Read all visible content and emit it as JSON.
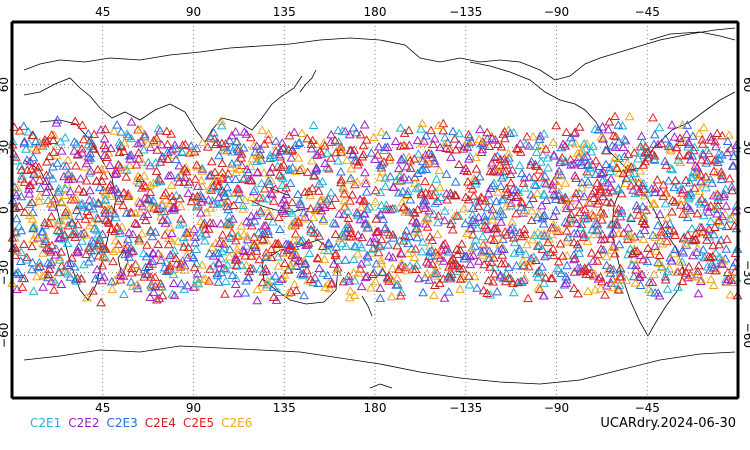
{
  "map": {
    "top_lon_ticks": [
      "45",
      "90",
      "135",
      "180",
      "−135",
      "−90",
      "−45"
    ],
    "bottom_lon_ticks": [
      "45",
      "90",
      "135",
      "180",
      "−135",
      "−90",
      "−45"
    ],
    "lat_ticks": [
      "60",
      "30",
      "0",
      "−30",
      "−60"
    ],
    "lat_values": [
      60,
      30,
      0,
      -30,
      -60
    ],
    "lon_values": [
      45,
      90,
      135,
      180,
      225,
      270,
      315
    ],
    "lon_range": [
      0,
      360
    ],
    "lat_range": [
      -90,
      90
    ],
    "grid": "dotted",
    "marker": "open-triangle",
    "occultation_band_lat": [
      -45,
      45
    ]
  },
  "legend": {
    "items": [
      {
        "label": "C2E1",
        "color": "#1fb4d6"
      },
      {
        "label": "C2E2",
        "color": "#a01fc8"
      },
      {
        "label": "C2E3",
        "color": "#2a6fe0"
      },
      {
        "label": "C2E4",
        "color": "#c81f1f"
      },
      {
        "label": "C2E5",
        "color": "#e8201c"
      },
      {
        "label": "C2E6",
        "color": "#f0a81a"
      }
    ]
  },
  "stamp": {
    "text": "UCARdry.2024-06-30"
  }
}
